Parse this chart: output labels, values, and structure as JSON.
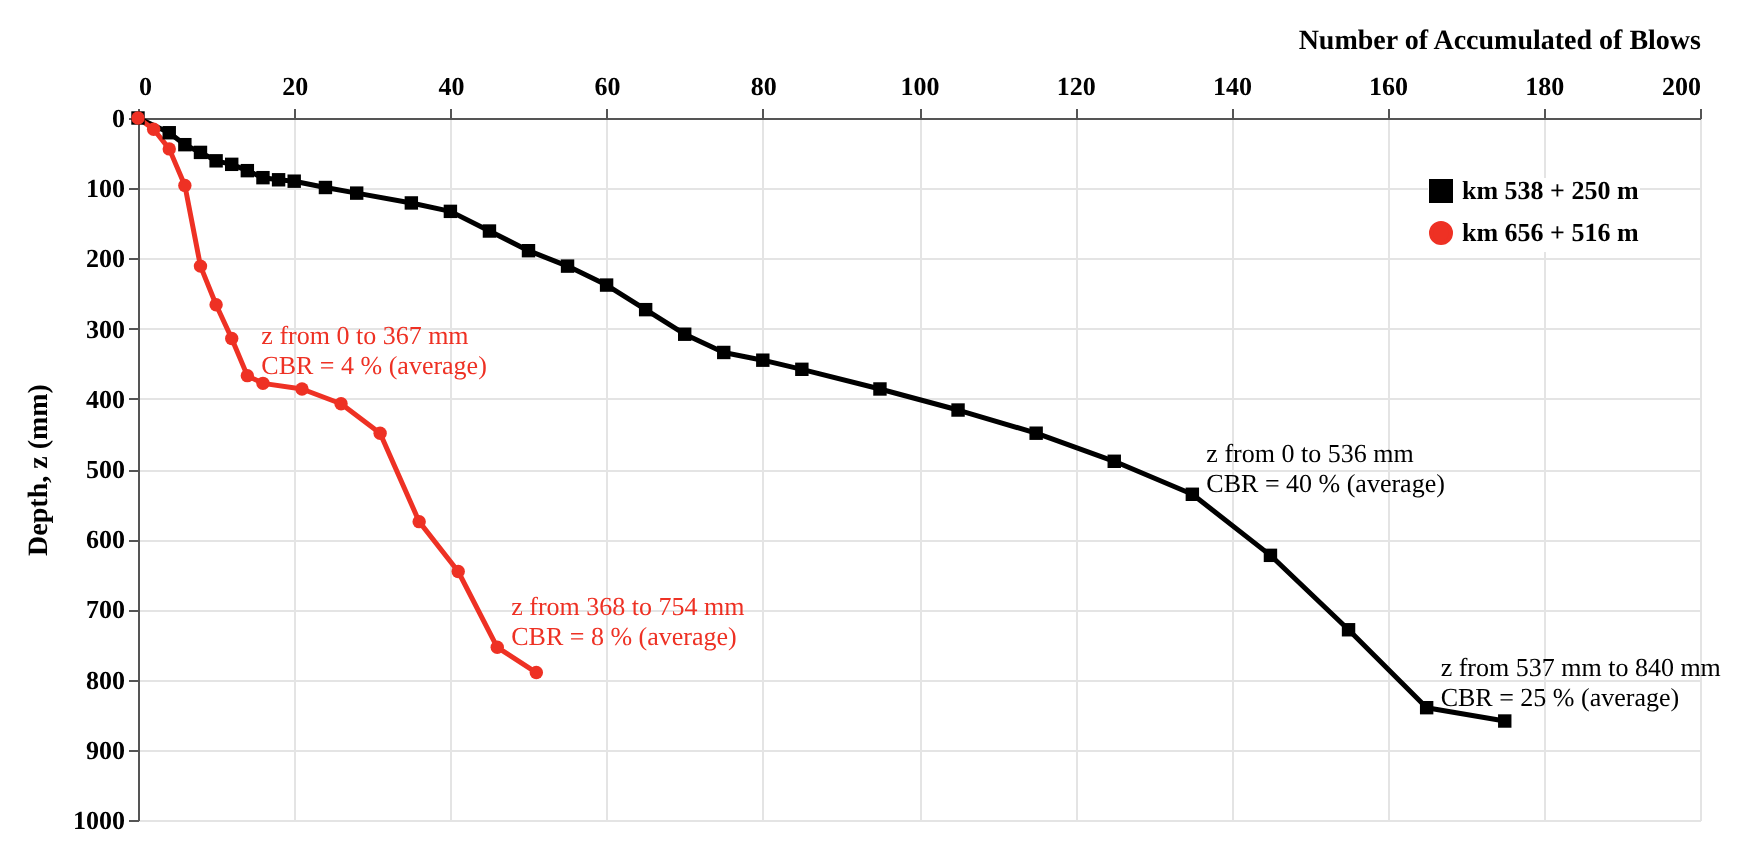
{
  "chart_data": {
    "type": "line",
    "xlabel": "Number of Accumulated of Blows",
    "ylabel": "Depth, z (mm)",
    "xlim": [
      0,
      200
    ],
    "xticks": [
      0,
      20,
      40,
      60,
      80,
      100,
      120,
      140,
      160,
      180,
      200
    ],
    "ylim": [
      1000,
      0
    ],
    "yticks": [
      0,
      100,
      200,
      300,
      400,
      500,
      600,
      700,
      800,
      900,
      1000
    ],
    "grid": true,
    "legend": "top right",
    "series": [
      {
        "name": "km 538 + 250 m",
        "color": "#000000",
        "marker": "square",
        "x": [
          0,
          4,
          6,
          8,
          10,
          12,
          14,
          16,
          18,
          20,
          24,
          28,
          35,
          40,
          45,
          50,
          55,
          60,
          65,
          70,
          75,
          80,
          85,
          95,
          105,
          115,
          125,
          135,
          145,
          155,
          165,
          175
        ],
        "values": [
          0,
          21,
          38,
          49,
          61,
          66,
          75,
          85,
          88,
          90,
          99,
          107,
          121,
          133,
          161,
          189,
          211,
          238,
          273,
          308,
          334,
          345,
          358,
          386,
          416,
          449,
          489,
          536,
          623,
          729,
          840,
          859
        ]
      },
      {
        "name": "km 656 + 516 m",
        "color": "#ee3124",
        "marker": "circle",
        "x": [
          0,
          2,
          4,
          6,
          8,
          10,
          12,
          14,
          16,
          21,
          26,
          31,
          36,
          41,
          46,
          51
        ],
        "values": [
          0,
          16,
          44,
          96,
          211,
          266,
          314,
          367,
          378,
          386,
          407,
          449,
          575,
          646,
          754,
          790
        ]
      }
    ],
    "annotations": [
      {
        "text": "z  from 0 to 367 mm\nCBR = 4 % (average)",
        "x": 14,
        "y": 367
      },
      {
        "text": "z from 368 to 754 mm\nCBR = 8 % (average)",
        "x": 46,
        "y": 754
      },
      {
        "text": "z  from 0 to 536 mm\nCBR = 40 % (average)",
        "x": 135,
        "y": 536
      },
      {
        "text": "z from 537 mm to 840 mm\nCBR = 25 % (average)",
        "x": 165,
        "y": 840
      }
    ]
  }
}
